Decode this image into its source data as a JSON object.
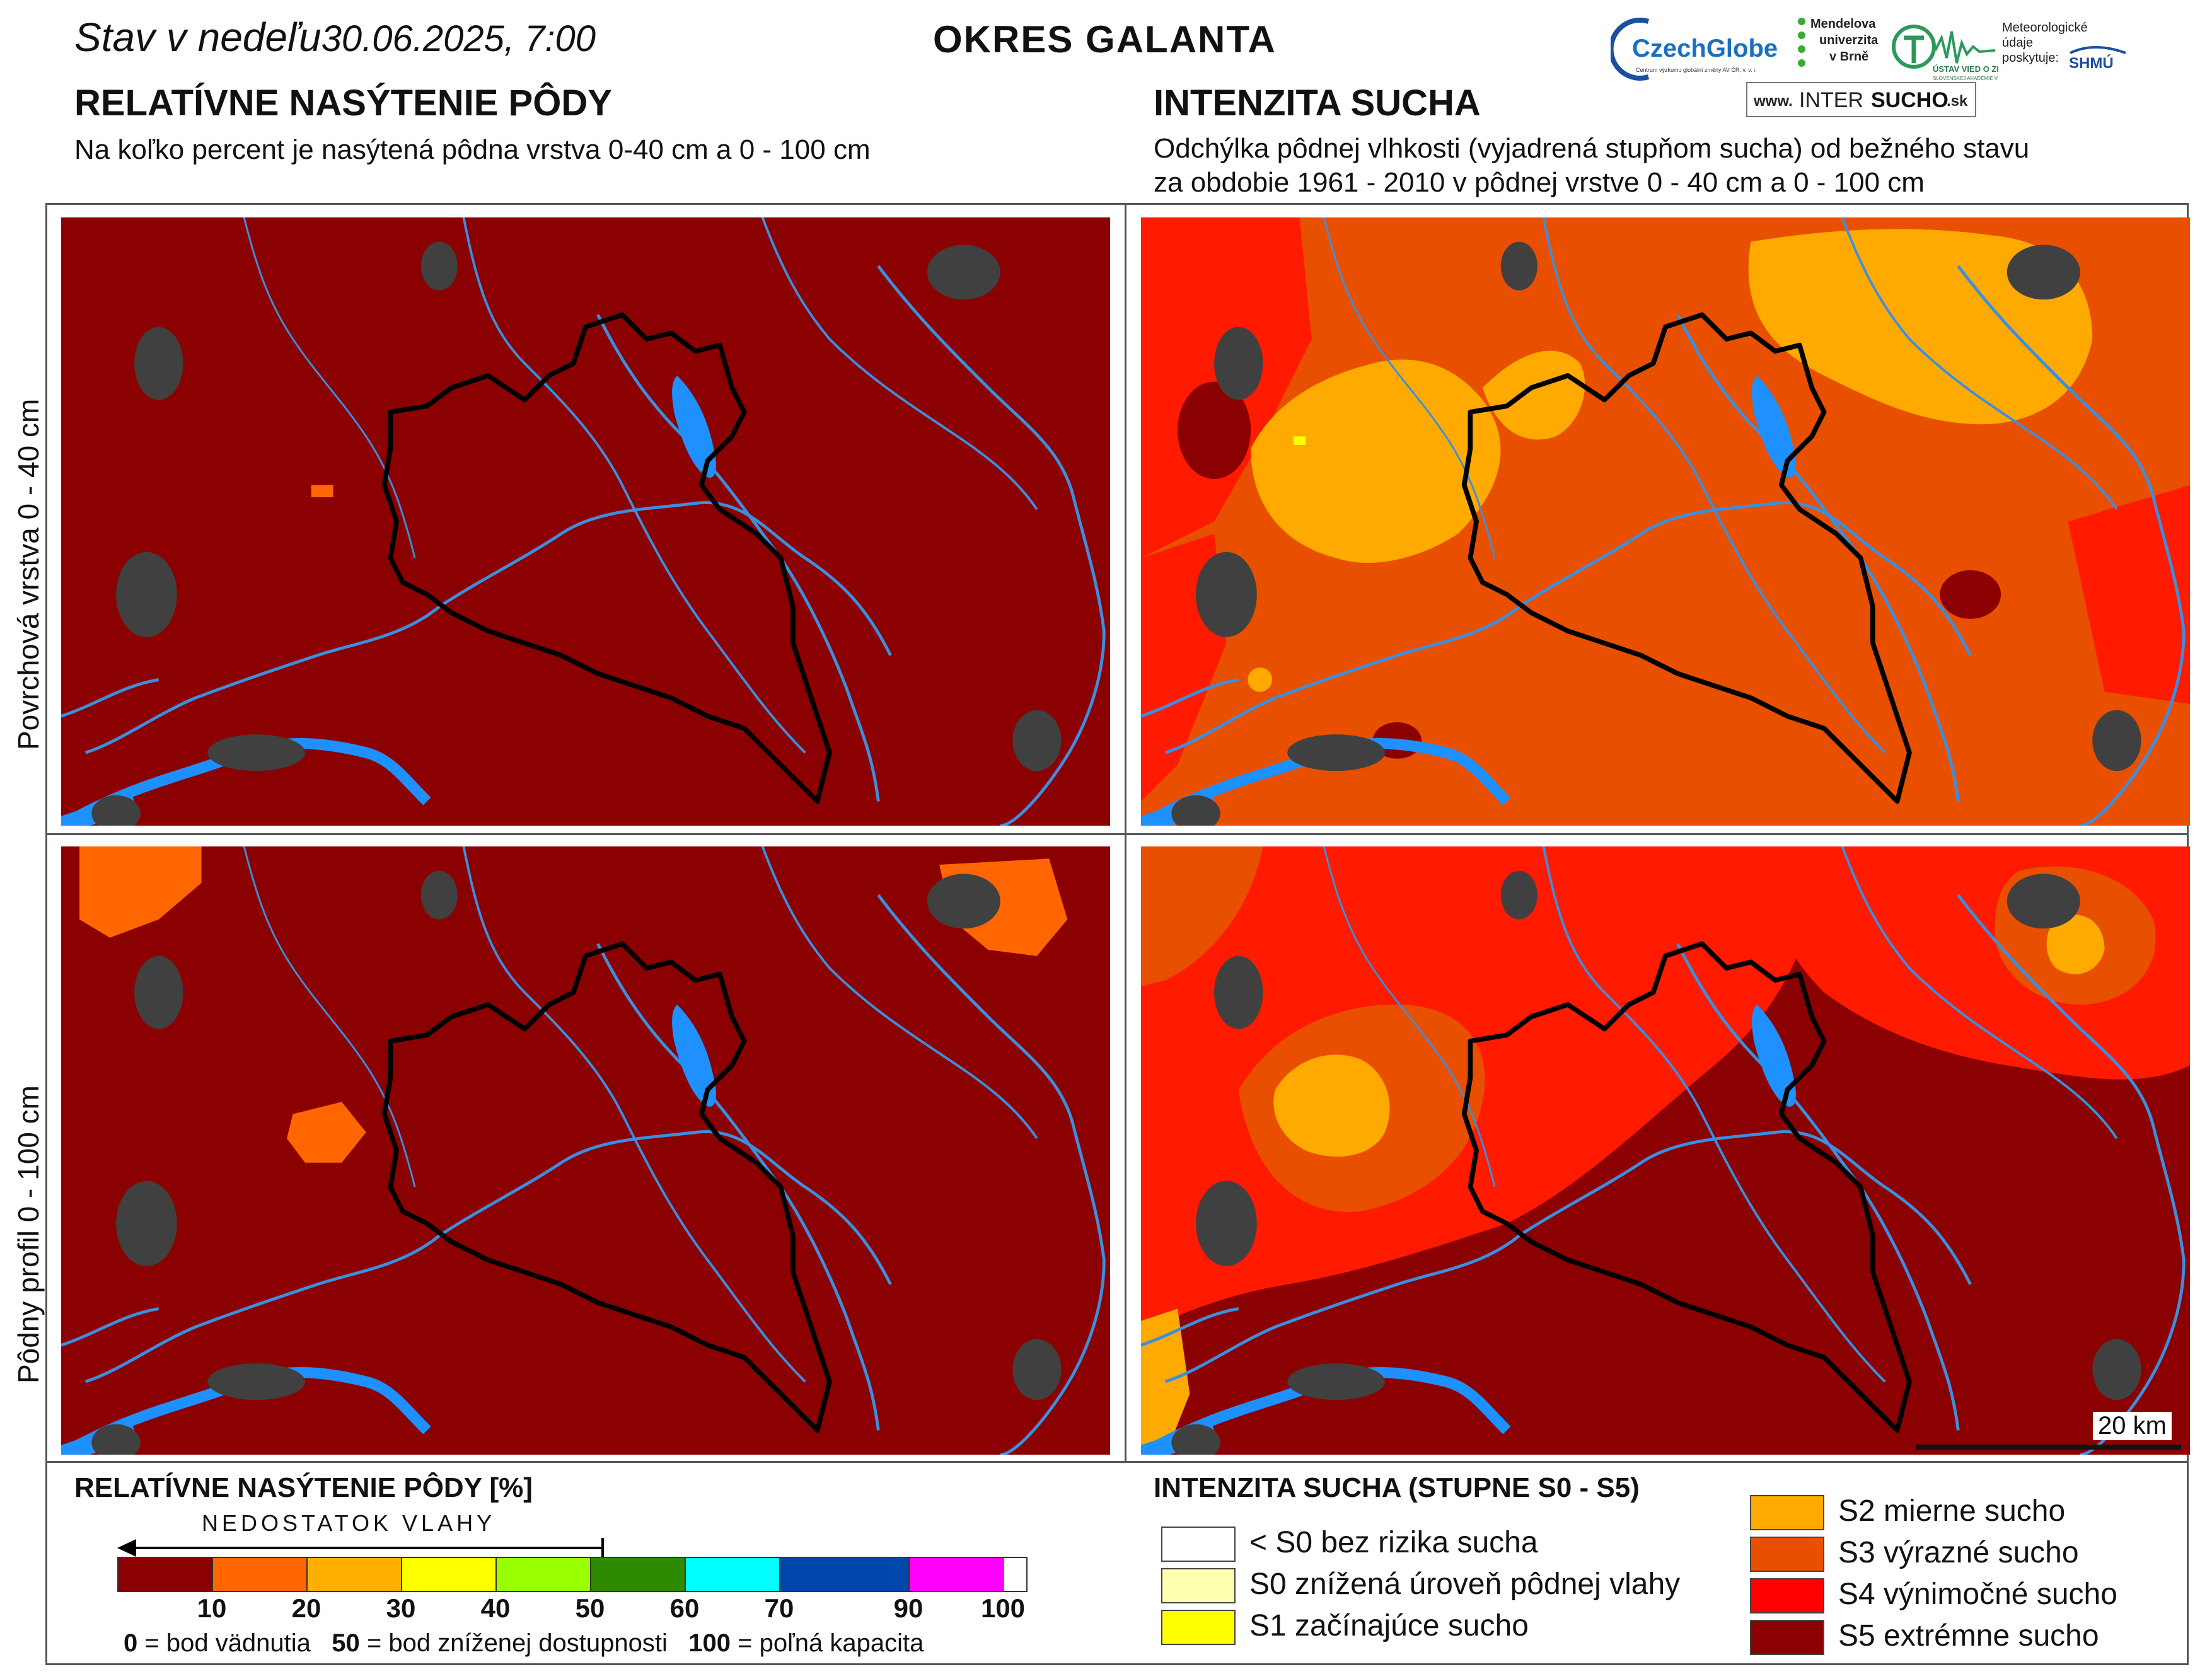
{
  "header": {
    "date_prefix": "Stav v nedeľu",
    "date_value": "30.06.2025, 7:00",
    "district": "OKRES  GALANTA"
  },
  "left_section": {
    "title": "RELATÍVNE NASÝTENIE PÔDY",
    "subtitle": "Na koľko percent je nasýtená pôdna vrstva 0-40 cm a 0 - 100 cm"
  },
  "right_section": {
    "title": "INTENZITA SUCHA",
    "subtitle_line1": "Odchýlka pôdnej vlhkosti (vyjadrená stupňom sucha) od bežného stavu",
    "subtitle_line2": "za obdobie 1961 - 2010 v pôdnej vrstve 0 - 40 cm a 0 - 100 cm"
  },
  "logos": {
    "czechglobe": "CzechGlobe",
    "czechglobe_sub": "Centrum výzkumu globální změny AV ČR, v. v. i.",
    "mendelu_line1": "Mendelova",
    "mendelu_line2": "univerzita",
    "mendelu_line3": "v Brně",
    "ustav": "ÚSTAV VIED O ZEMI",
    "ustav_sub": "SLOVENSKEJ AKADÉMIE VIED",
    "meteo_line1": "Meteorologické",
    "meteo_line2": "údaje",
    "meteo_line3": "poskytuje:",
    "shmu": "SHMÚ",
    "intersucho_prefix": "www.",
    "intersucho_main1": "INTER",
    "intersucho_main2": "SUCHO",
    "intersucho_suffix": ".sk"
  },
  "row_labels": {
    "top": "Povrchová vrstva 0 - 40 cm",
    "bottom": "Pôdny profil 0 - 100 cm"
  },
  "scale_bar": "20 km",
  "legend_left": {
    "title": "RELATÍVNE NASÝTENIE PÔDY [%]",
    "arrow_label": "NEDOSTATOK VLAHY",
    "colors": [
      "#8b0000",
      "#ff6600",
      "#ffb000",
      "#ffff00",
      "#99ff00",
      "#2e8b00",
      "#00ffff",
      "#0047ab",
      "#ff00ff"
    ],
    "ticks": [
      "10",
      "20",
      "30",
      "40",
      "50",
      "60",
      "70",
      "90",
      "100"
    ],
    "foot_0": "0",
    "foot_0_text": " = bod vädnutia",
    "foot_50": "50",
    "foot_50_text": " = bod zníženej dostupnosti",
    "foot_100": "100",
    "foot_100_text": " = poľná kapacita"
  },
  "legend_right": {
    "title": "INTENZITA SUCHA (STUPNE S0 - S5)",
    "items": [
      {
        "label": "< S0 bez rizika sucha",
        "color": "#ffffff"
      },
      {
        "label": "S0 znížená úroveň pôdnej vlahy",
        "color": "#ffffb0"
      },
      {
        "label": "S1 začínajúce sucho",
        "color": "#ffff00"
      },
      {
        "label": "S2 mierne sucho",
        "color": "#ffaa00"
      },
      {
        "label": "S3 výrazné sucho",
        "color": "#e85000"
      },
      {
        "label": "S4 výnimočné sucho",
        "color": "#ff0000"
      },
      {
        "label": "S5 extrémne sucho",
        "color": "#8b0000"
      }
    ]
  },
  "colors": {
    "saturation_dry": "#8b0000",
    "saturation_20": "#ff6600",
    "water": "#1e90ff",
    "urban": "#404040",
    "s2": "#ffaa00",
    "s3": "#e85000",
    "s4": "#ff1a00",
    "s5": "#8b0000"
  }
}
